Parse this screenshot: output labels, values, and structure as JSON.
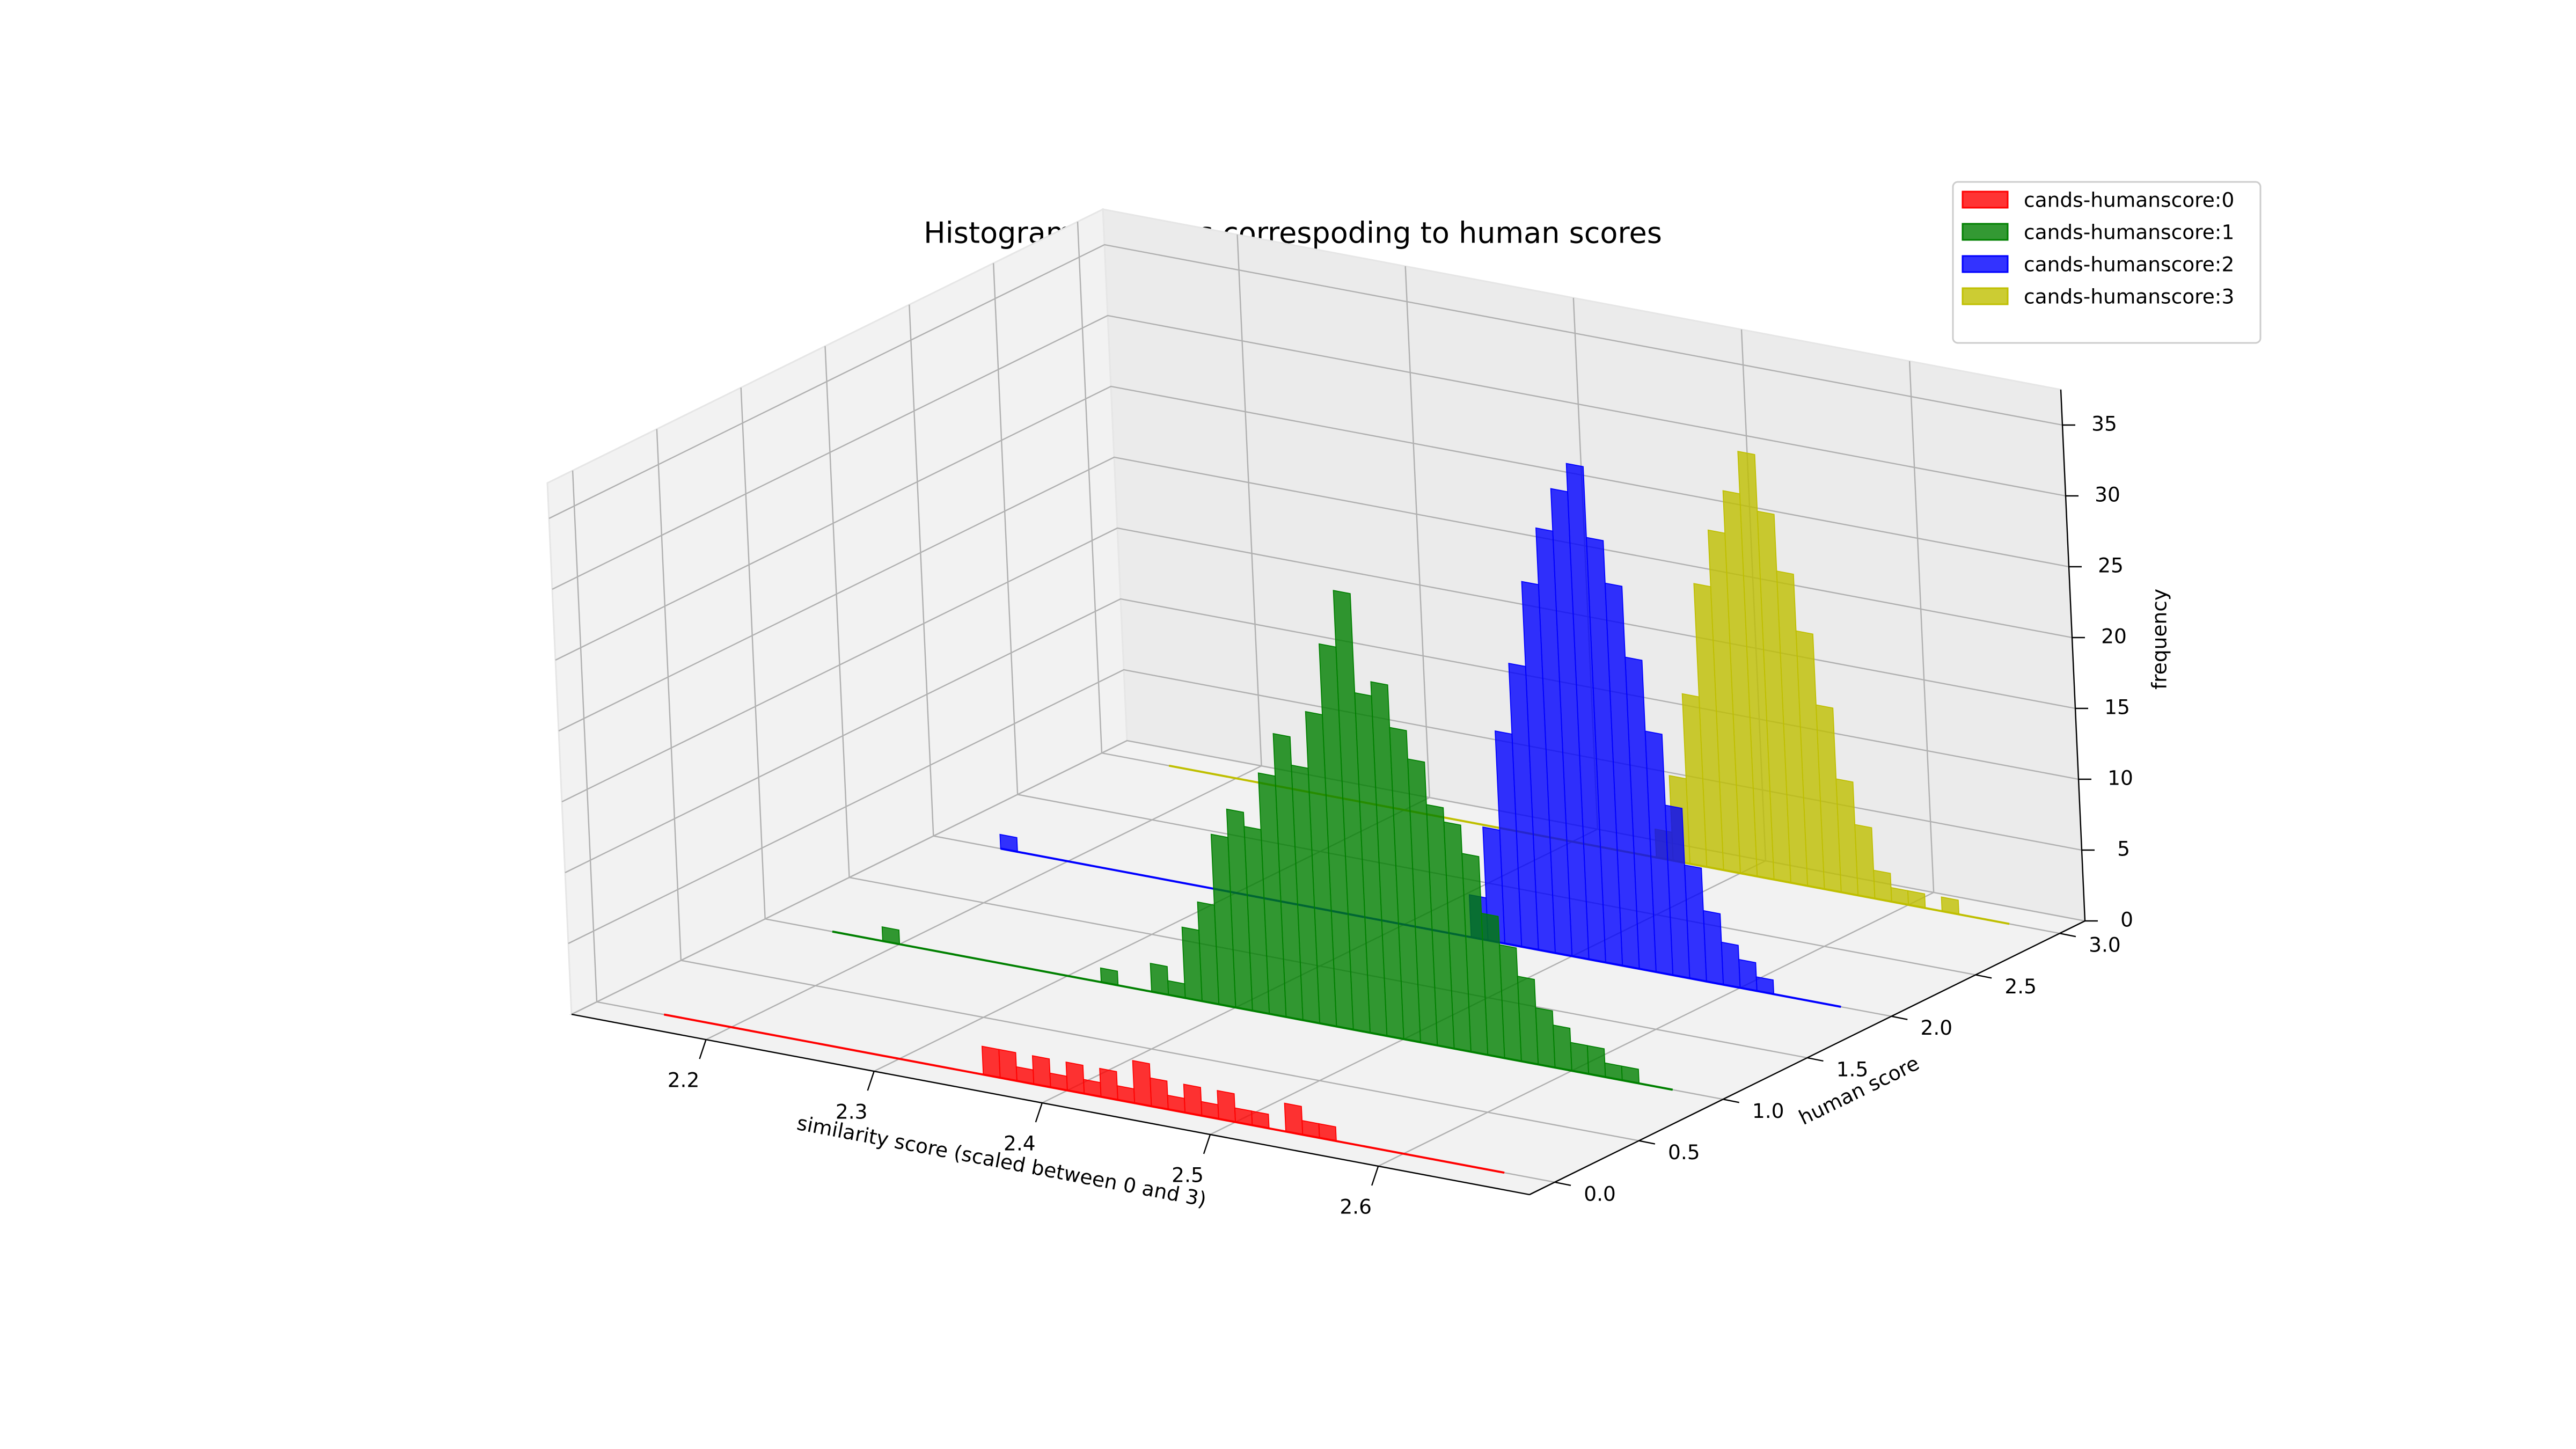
{
  "chart_data": {
    "type": "histogram3d",
    "title": "Histogram of scores correspoding to human scores",
    "x_label": "similarity score (scaled between 0 and 3)",
    "y_label": "human score",
    "z_label": "frequency",
    "bins": [
      2.16,
      2.17,
      2.18,
      2.19,
      2.2,
      2.21,
      2.22,
      2.23,
      2.24,
      2.25,
      2.26,
      2.27,
      2.28,
      2.29,
      2.3,
      2.31,
      2.32,
      2.33,
      2.34,
      2.35,
      2.36,
      2.37,
      2.38,
      2.39,
      2.4,
      2.41,
      2.42,
      2.43,
      2.44,
      2.45,
      2.46,
      2.47,
      2.48,
      2.49,
      2.5,
      2.51,
      2.52,
      2.53,
      2.54,
      2.55,
      2.56,
      2.57,
      2.58,
      2.59,
      2.6,
      2.61,
      2.62,
      2.63,
      2.64,
      2.65,
      2.66
    ],
    "series": [
      {
        "name": "cands-humanscore:0",
        "color": "#ff0000",
        "human_score": 0,
        "values": [
          0,
          0,
          0,
          0,
          0,
          0,
          0,
          0,
          0,
          0,
          0,
          0,
          0,
          0,
          0,
          0,
          0,
          0,
          0,
          2,
          2,
          1,
          2,
          1,
          2,
          1,
          2,
          1,
          3,
          2,
          1,
          2,
          1,
          2,
          1,
          1,
          0,
          2,
          1,
          1,
          0,
          0,
          0,
          0,
          0,
          0,
          0,
          0,
          0,
          0
        ]
      },
      {
        "name": "cands-humanscore:1",
        "color": "#008000",
        "human_score": 1,
        "values": [
          0,
          0,
          0,
          1,
          0,
          0,
          0,
          0,
          0,
          0,
          0,
          0,
          0,
          0,
          0,
          0,
          1,
          0,
          0,
          2,
          1,
          5,
          7,
          12,
          14,
          13,
          17,
          20,
          18,
          22,
          27,
          31,
          24,
          25,
          22,
          20,
          17,
          16,
          14,
          10,
          8,
          6,
          4,
          3,
          2,
          2,
          1,
          1,
          0,
          0
        ]
      },
      {
        "name": "cands-humanscore:2",
        "color": "#0000ff",
        "human_score": 2,
        "values": [
          1,
          0,
          0,
          0,
          0,
          0,
          0,
          0,
          0,
          0,
          0,
          0,
          0,
          0,
          0,
          0,
          0,
          0,
          0,
          0,
          0,
          0,
          0,
          0,
          0,
          0,
          0,
          0,
          3,
          8,
          15,
          20,
          26,
          30,
          33,
          35,
          30,
          27,
          22,
          17,
          12,
          8,
          5,
          3,
          2,
          1,
          0,
          0,
          0,
          0
        ]
      },
      {
        "name": "cands-humanscore:3",
        "color": "#bfbf00",
        "human_score": 3,
        "values": [
          0,
          0,
          0,
          0,
          0,
          0,
          0,
          0,
          0,
          0,
          0,
          0,
          0,
          0,
          0,
          0,
          0,
          0,
          0,
          0,
          0,
          0,
          0,
          0,
          0,
          0,
          0,
          0,
          0,
          2,
          6,
          12,
          20,
          24,
          27,
          30,
          26,
          22,
          18,
          13,
          8,
          5,
          2,
          1,
          1,
          0,
          1,
          0,
          0,
          0
        ]
      }
    ],
    "xlim": [
      2.12,
      2.69
    ],
    "xticks": [
      2.2,
      2.3,
      2.4,
      2.5,
      2.6
    ],
    "ylim": [
      -0.15,
      3.15
    ],
    "yticks": [
      {
        "value": 0,
        "label": "0.0"
      },
      0.5,
      {
        "value": 1,
        "label": "1.0"
      },
      1.5,
      {
        "value": 2,
        "label": "2.0"
      },
      2.5,
      {
        "value": 3,
        "label": "3.0"
      }
    ],
    "zlim": [
      0,
      37.5
    ],
    "zticks": [
      0,
      5,
      10,
      15,
      20,
      25,
      30,
      35
    ],
    "grid": true,
    "legend": "upper right"
  }
}
